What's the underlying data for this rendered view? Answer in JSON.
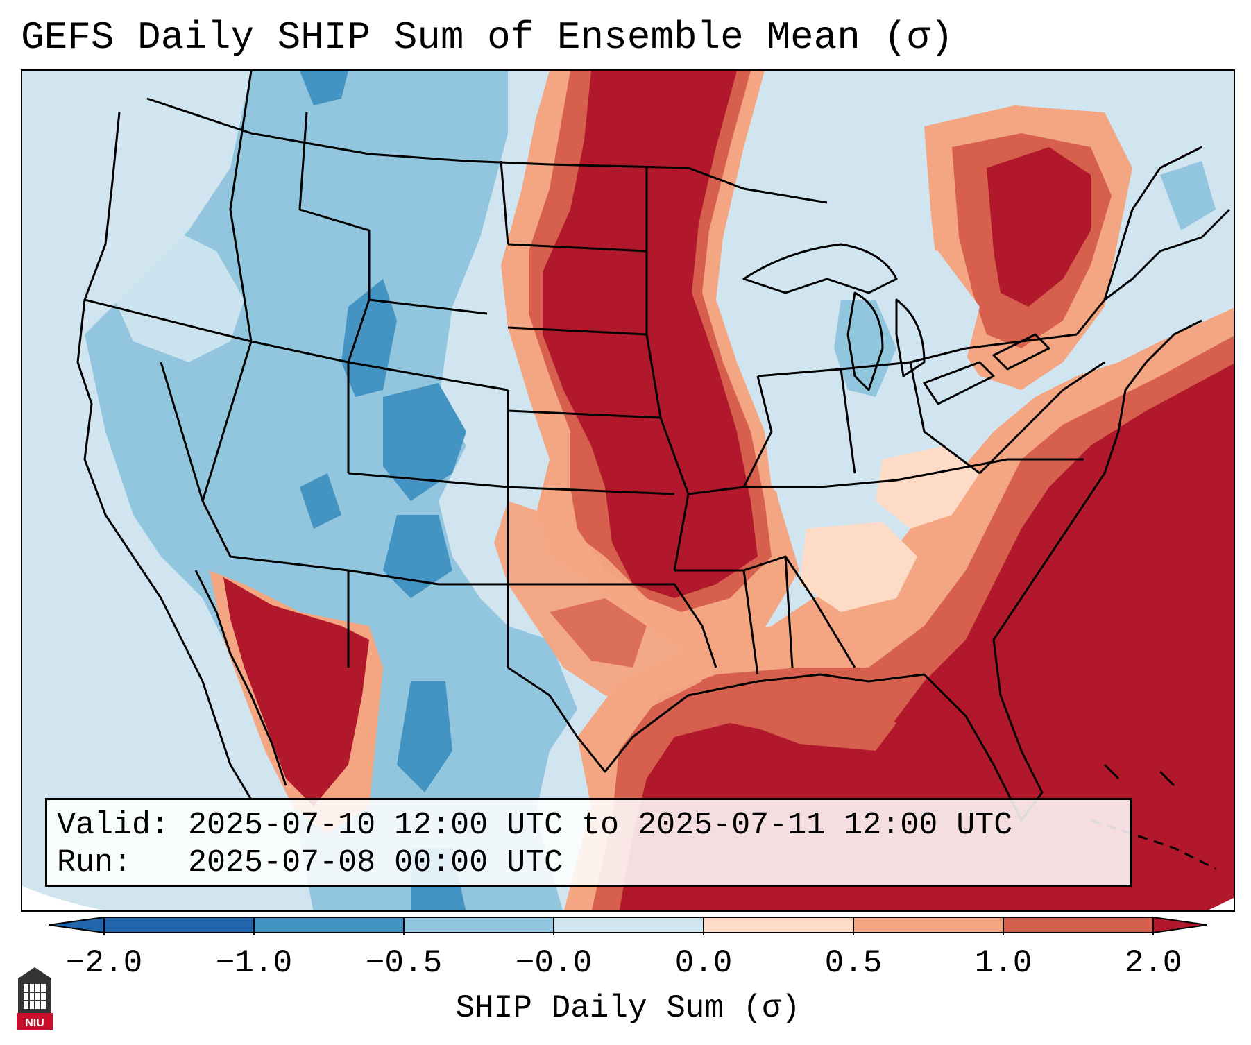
{
  "title": "GEFS Daily SHIP Sum of Ensemble Mean (σ)",
  "valid_label": "Valid:",
  "valid_value": "2025-07-10 12:00 UTC to 2025-07-11 12:00 UTC",
  "run_label": "Run:",
  "run_value": "2025-07-08 00:00 UTC",
  "colorbar": {
    "label": "SHIP Daily Sum (σ)",
    "ticks": [
      "−2.0",
      "−1.0",
      "−0.5",
      "−0.0",
      "0.0",
      "0.5",
      "1.0",
      "2.0"
    ],
    "colors": [
      "#2166ac",
      "#4393c3",
      "#92c5de",
      "#d1e5f0",
      "#fddbc7",
      "#f4a582",
      "#d6604d",
      "#b2182b"
    ],
    "extend": "both"
  },
  "logo_text": "NIU",
  "map": {
    "projection": "Lambert conformal, CONUS",
    "pattern": "Strong positive SHIP anomaly (red) across the northern and central Plains, Southeast, Gulf of Mexico and western Atlantic; negative anomalies (blue) over the Intermountain West, Rockies, and parts of the Great Lakes/Northeast and Mexico interior."
  }
}
